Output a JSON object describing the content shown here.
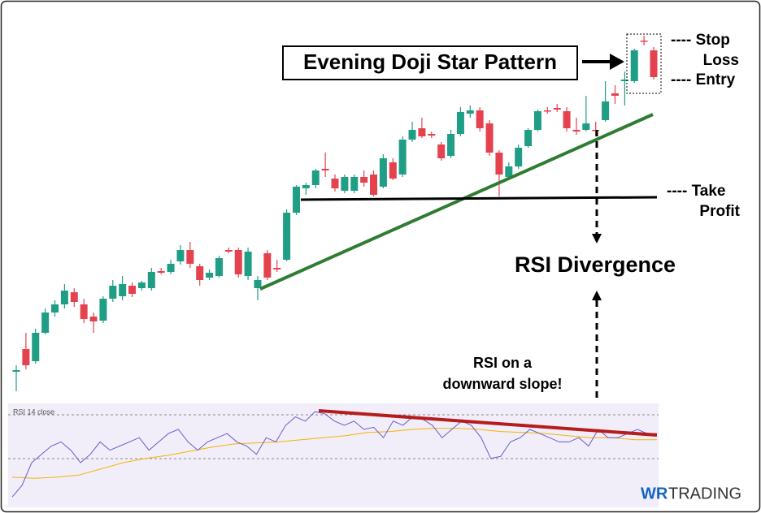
{
  "chart_data": {
    "type": "candlestick",
    "up_color": "#1f9e85",
    "down_color": "#e5424f",
    "ylim": [
      0,
      460
    ],
    "open": [
      32,
      60,
      45,
      80,
      105,
      115,
      130,
      115,
      100,
      95,
      122,
      125,
      138,
      135,
      135,
      156,
      155,
      168,
      182,
      162,
      148,
      150,
      182,
      182,
      150,
      135,
      178,
      160,
      170,
      228,
      258,
      262,
      282,
      270,
      255,
      255,
      272,
      275,
      260,
      290,
      275,
      318,
      332,
      325,
      312,
      298,
      325,
      350,
      354,
      338,
      302,
      272,
      285,
      310,
      330,
      354,
      357,
      353,
      330,
      330,
      330,
      342,
      375,
      390,
      390,
      440,
      428
    ],
    "close": [
      34,
      40,
      80,
      105,
      115,
      132,
      118,
      97,
      94,
      122,
      138,
      140,
      128,
      142,
      155,
      154,
      165,
      182,
      165,
      145,
      154,
      172,
      180,
      152,
      180,
      145,
      148,
      158,
      228,
      260,
      262,
      280,
      280,
      258,
      272,
      272,
      265,
      250,
      295,
      270,
      318,
      330,
      322,
      323,
      295,
      325,
      352,
      354,
      332,
      302,
      275,
      285,
      308,
      330,
      353,
      353,
      355,
      332,
      328,
      338,
      329,
      365,
      372,
      392,
      428,
      439,
      395
    ],
    "high": [
      40,
      80,
      85,
      110,
      120,
      140,
      135,
      122,
      105,
      125,
      145,
      150,
      142,
      144,
      160,
      160,
      170,
      188,
      192,
      165,
      158,
      175,
      185,
      185,
      185,
      150,
      182,
      170,
      232,
      262,
      265,
      282,
      302,
      275,
      275,
      275,
      280,
      280,
      300,
      295,
      322,
      340,
      345,
      328,
      315,
      330,
      358,
      360,
      358,
      342,
      305,
      290,
      312,
      332,
      355,
      358,
      362,
      358,
      345,
      372,
      340,
      390,
      385,
      402,
      430,
      446,
      432
    ],
    "low": [
      8,
      35,
      42,
      78,
      100,
      110,
      112,
      92,
      80,
      92,
      118,
      120,
      124,
      132,
      132,
      152,
      152,
      164,
      160,
      138,
      145,
      148,
      178,
      148,
      145,
      120,
      145,
      155,
      168,
      225,
      250,
      258,
      272,
      254,
      252,
      252,
      260,
      248,
      258,
      268,
      272,
      315,
      320,
      320,
      292,
      295,
      322,
      345,
      328,
      298,
      248,
      270,
      282,
      308,
      328,
      350,
      352,
      328,
      324,
      328,
      322,
      340,
      362,
      360,
      388,
      434,
      392
    ],
    "rsi": {
      "name": "RSI 14 close",
      "color": "#6a5acd",
      "ma_color": "#f2b400",
      "ylim": [
        0,
        100
      ],
      "values": [
        10,
        21,
        43,
        51,
        59,
        63,
        55,
        43,
        51,
        63,
        55,
        59,
        63,
        67,
        55,
        63,
        71,
        75,
        63,
        55,
        63,
        67,
        71,
        63,
        59,
        51,
        67,
        63,
        79,
        87,
        83,
        92,
        90,
        83,
        79,
        83,
        75,
        77,
        67,
        83,
        79,
        87,
        85,
        79,
        67,
        75,
        83,
        79,
        67,
        47,
        49,
        63,
        67,
        75,
        71,
        67,
        63,
        63,
        67,
        59,
        75,
        67,
        67,
        71,
        75,
        71,
        71
      ],
      "ma": [
        29,
        28,
        29,
        31,
        37,
        43,
        47,
        50,
        54,
        58,
        61,
        62,
        63,
        65,
        67,
        69,
        72,
        73,
        75,
        76,
        76,
        75,
        73,
        72,
        71,
        69,
        67,
        67,
        65,
        65
      ]
    },
    "annotations": {
      "pattern": "Evening Doji Star Pattern",
      "stop_1": "---- Stop",
      "stop_2": "Loss",
      "entry": "---- Entry",
      "tp_1": "---- Take",
      "tp_2": "Profit",
      "divergence": "RSI Divergence",
      "slope_1": "RSI on a",
      "slope_2": "downward slope!"
    },
    "brand": {
      "wr": "WR",
      "trading": "TRADING"
    }
  }
}
